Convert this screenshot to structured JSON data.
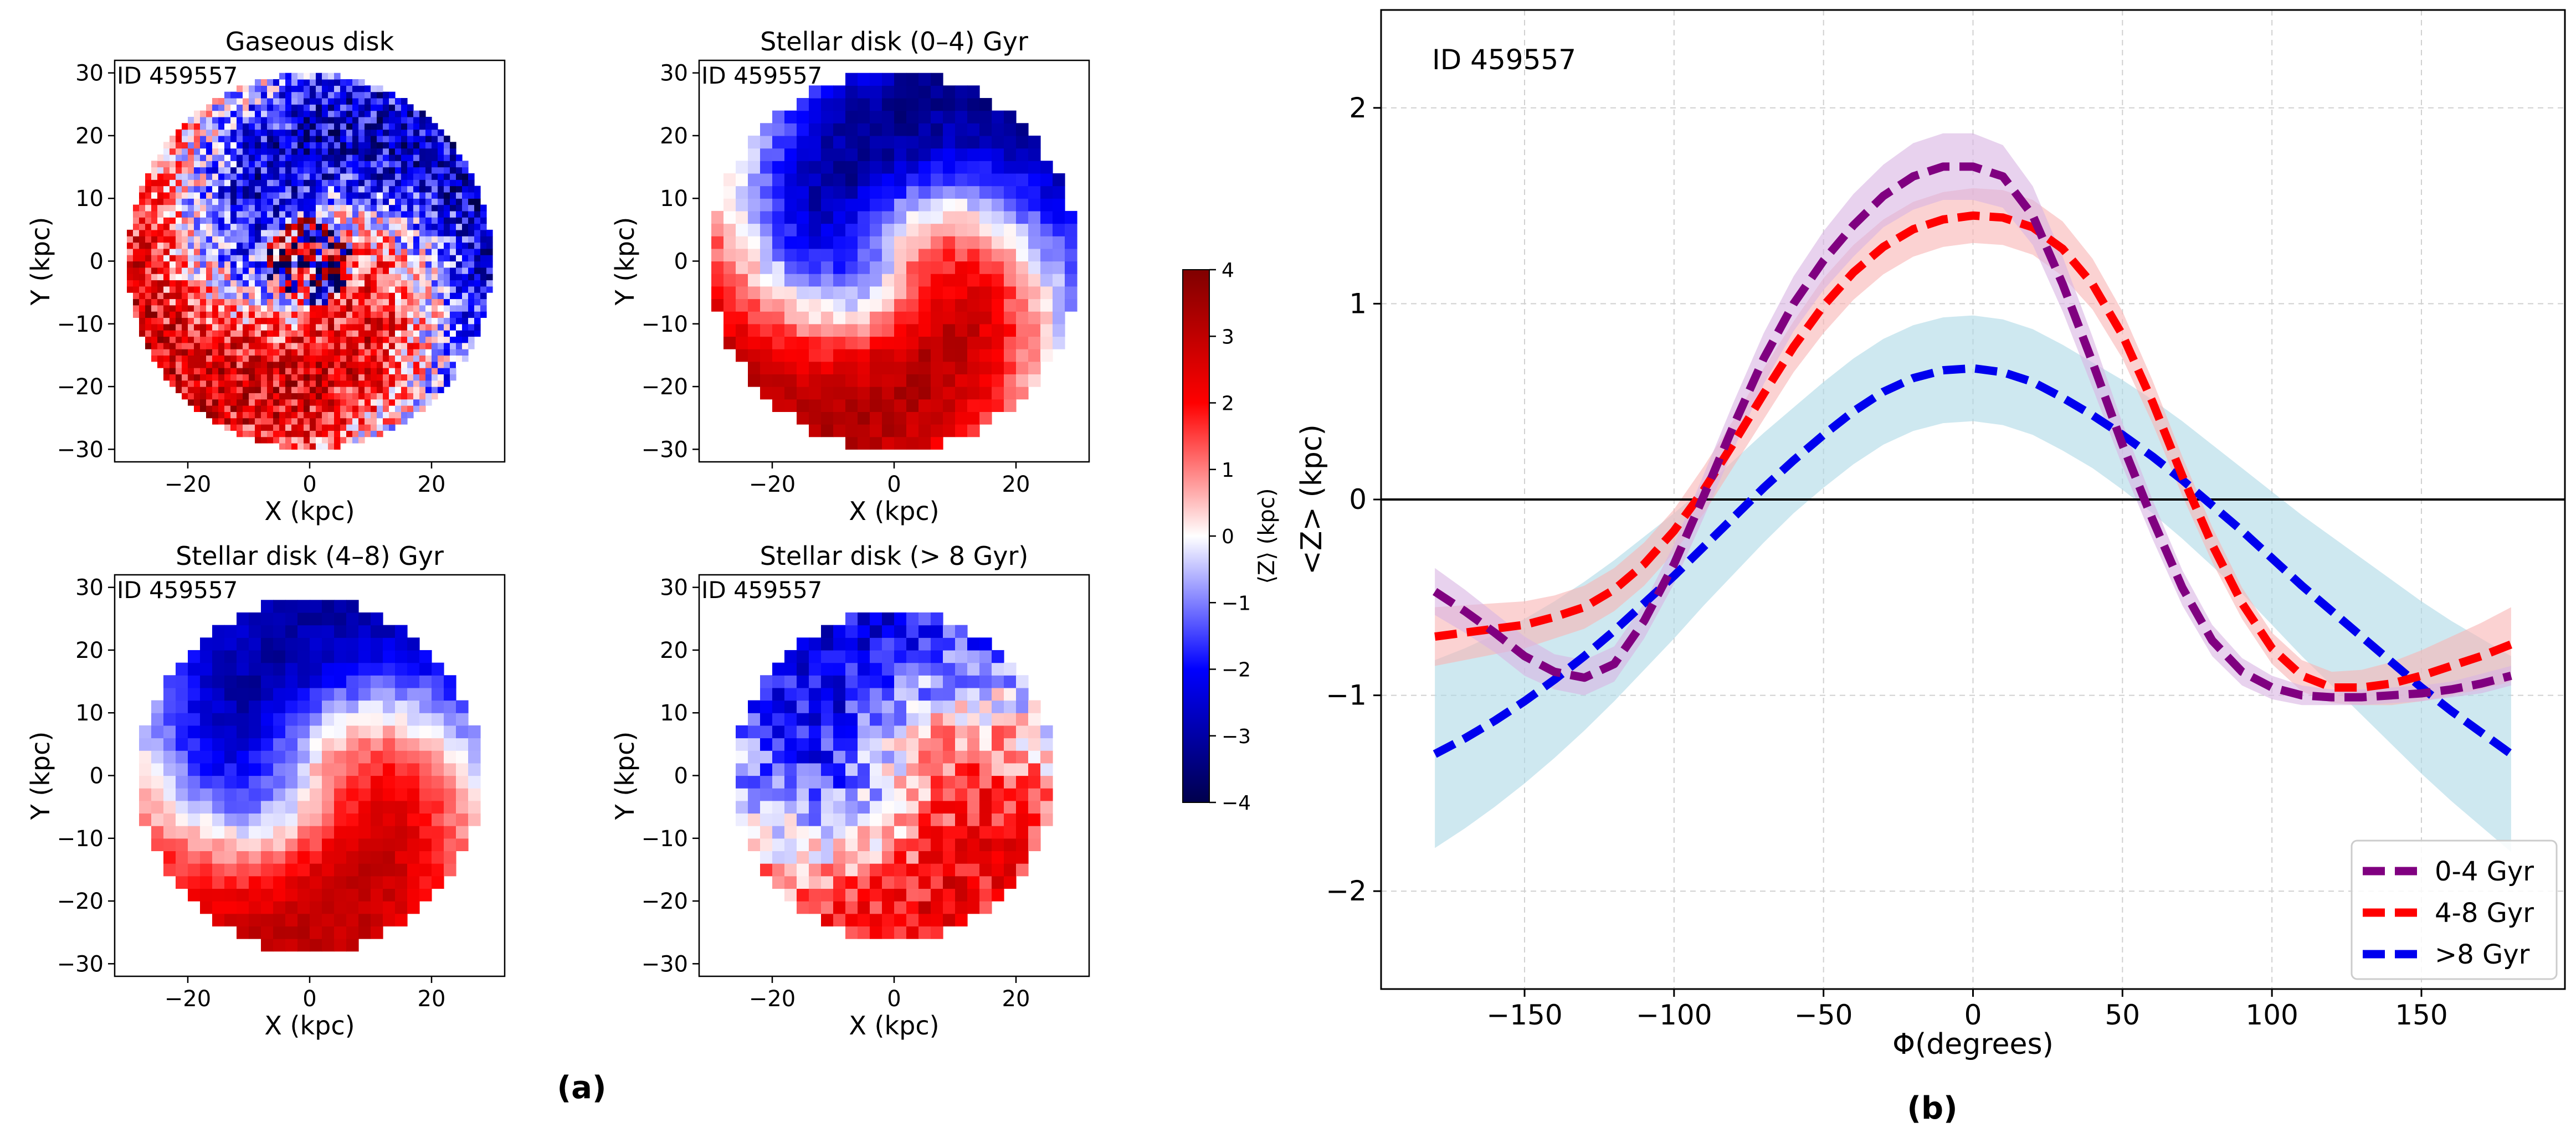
{
  "figure": {
    "panel_a_label": "(a)",
    "panel_b_label": "(b)"
  },
  "colorbar": {
    "label": "⟨Z⟩ (kpc)",
    "range": [
      -4,
      4
    ],
    "ticks": [
      -4,
      -3,
      -2,
      -1,
      0,
      1,
      2,
      3,
      4
    ],
    "colormap": "seismic",
    "colors": [
      "#00004c",
      "#0000ff",
      "#ffffff",
      "#ff0000",
      "#800000"
    ]
  },
  "chart_data": [
    {
      "type": "heatmap",
      "title": "Gaseous disk",
      "annotation": "ID 459557",
      "xlabel": "X (kpc)",
      "ylabel": "Y (kpc)",
      "xlim": [
        -32,
        32
      ],
      "ylim": [
        -32,
        32
      ],
      "xticks": [
        -20,
        0,
        20
      ],
      "yticks": [
        -30,
        -20,
        -10,
        0,
        10,
        20,
        30
      ],
      "disk_radius_kpc": 30,
      "pixel_kpc": 1,
      "colormap": "seismic",
      "color_range": [
        -4,
        4
      ],
      "pattern": {
        "kind": "warp",
        "amplitude": 2.6,
        "phase_deg": 0,
        "spiral": 0.09,
        "noise": 1.6,
        "center_noise": true
      }
    },
    {
      "type": "heatmap",
      "title": "Stellar disk (0–4) Gyr",
      "annotation": "ID 459557",
      "xlabel": "X (kpc)",
      "ylabel": "Y (kpc)",
      "xlim": [
        -32,
        32
      ],
      "ylim": [
        -32,
        32
      ],
      "xticks": [
        -20,
        0,
        20
      ],
      "yticks": [
        -30,
        -20,
        -10,
        0,
        10,
        20,
        30
      ],
      "disk_radius_kpc": 30,
      "pixel_kpc": 2,
      "colormap": "seismic",
      "color_range": [
        -4,
        4
      ],
      "pattern": {
        "kind": "warp",
        "amplitude": 3.2,
        "phase_deg": 0,
        "spiral": 0.07,
        "noise": 0.4
      }
    },
    {
      "type": "heatmap",
      "title": "Stellar disk (4–8) Gyr",
      "annotation": "ID 459557",
      "xlabel": "X (kpc)",
      "ylabel": "Y (kpc)",
      "xlim": [
        -32,
        32
      ],
      "ylim": [
        -32,
        32
      ],
      "xticks": [
        -20,
        0,
        20
      ],
      "yticks": [
        -30,
        -20,
        -10,
        0,
        10,
        20,
        30
      ],
      "disk_radius_kpc": 28,
      "pixel_kpc": 2,
      "colormap": "seismic",
      "color_range": [
        -4,
        4
      ],
      "pattern": {
        "kind": "warp",
        "amplitude": 3.0,
        "phase_deg": 0,
        "spiral": 0.06,
        "noise": 0.35
      }
    },
    {
      "type": "heatmap",
      "title": "Stellar disk (> 8 Gyr)",
      "annotation": "ID 459557",
      "xlabel": "X (kpc)",
      "ylabel": "Y (kpc)",
      "xlim": [
        -32,
        32
      ],
      "ylim": [
        -32,
        32
      ],
      "xticks": [
        -20,
        0,
        20
      ],
      "yticks": [
        -30,
        -20,
        -10,
        0,
        10,
        20,
        30
      ],
      "disk_radius_kpc": 26,
      "pixel_kpc": 2,
      "colormap": "seismic",
      "color_range": [
        -4,
        4
      ],
      "pattern": {
        "kind": "warp",
        "amplitude": 2.2,
        "phase_deg": 0,
        "spiral": 0.05,
        "noise": 0.9
      }
    },
    {
      "type": "line",
      "title": "",
      "annotation": "ID 459557",
      "xlabel": "Φ(degrees)",
      "ylabel": "<Z> (kpc)",
      "xlim": [
        -198,
        198
      ],
      "ylim": [
        -2.5,
        2.5
      ],
      "xticks": [
        -150,
        -100,
        -50,
        0,
        50,
        100,
        150
      ],
      "yticks": [
        -2,
        -1,
        0,
        1,
        2
      ],
      "grid": true,
      "reference_line_y": 0,
      "legend_position": "bottom-right",
      "x": [
        -180,
        -170,
        -160,
        -150,
        -140,
        -130,
        -120,
        -110,
        -100,
        -90,
        -80,
        -70,
        -60,
        -50,
        -40,
        -30,
        -20,
        -10,
        0,
        10,
        20,
        30,
        40,
        50,
        60,
        70,
        80,
        90,
        100,
        110,
        120,
        130,
        140,
        150,
        160,
        170,
        180
      ],
      "series": [
        {
          "name": "0-4 Gyr",
          "color": "#800080",
          "band_color": "#d8b4e2",
          "values": [
            -0.47,
            -0.57,
            -0.68,
            -0.8,
            -0.88,
            -0.91,
            -0.84,
            -0.62,
            -0.33,
            0.02,
            0.38,
            0.72,
            1.0,
            1.22,
            1.4,
            1.55,
            1.65,
            1.7,
            1.7,
            1.65,
            1.45,
            1.1,
            0.7,
            0.28,
            -0.1,
            -0.45,
            -0.72,
            -0.88,
            -0.96,
            -1.0,
            -1.01,
            -1.01,
            -1.0,
            -0.99,
            -0.97,
            -0.94,
            -0.9
          ],
          "band": [
            0.12,
            0.11,
            0.1,
            0.1,
            0.09,
            0.09,
            0.09,
            0.09,
            0.1,
            0.11,
            0.12,
            0.13,
            0.14,
            0.15,
            0.16,
            0.16,
            0.17,
            0.17,
            0.17,
            0.16,
            0.15,
            0.14,
            0.13,
            0.11,
            0.1,
            0.09,
            0.08,
            0.07,
            0.06,
            0.05,
            0.04,
            0.04,
            0.04,
            0.04,
            0.04,
            0.05,
            0.05
          ]
        },
        {
          "name": "4-8 Gyr",
          "color": "#ff0000",
          "band_color": "#f8b4b4",
          "values": [
            -0.7,
            -0.68,
            -0.66,
            -0.64,
            -0.6,
            -0.55,
            -0.46,
            -0.33,
            -0.16,
            0.05,
            0.29,
            0.54,
            0.78,
            0.99,
            1.16,
            1.29,
            1.38,
            1.43,
            1.45,
            1.44,
            1.39,
            1.28,
            1.1,
            0.84,
            0.5,
            0.12,
            -0.23,
            -0.53,
            -0.76,
            -0.9,
            -0.96,
            -0.96,
            -0.94,
            -0.9,
            -0.85,
            -0.8,
            -0.74
          ],
          "band": [
            0.15,
            0.14,
            0.13,
            0.12,
            0.11,
            0.11,
            0.11,
            0.11,
            0.11,
            0.12,
            0.12,
            0.13,
            0.13,
            0.14,
            0.14,
            0.14,
            0.14,
            0.14,
            0.14,
            0.14,
            0.14,
            0.14,
            0.13,
            0.12,
            0.11,
            0.1,
            0.09,
            0.08,
            0.08,
            0.08,
            0.08,
            0.09,
            0.11,
            0.13,
            0.15,
            0.17,
            0.19
          ]
        },
        {
          "name": ">8 Gyr",
          "color": "#0000ee",
          "band_color": "#add8e6",
          "values": [
            -1.3,
            -1.22,
            -1.13,
            -1.03,
            -0.92,
            -0.8,
            -0.67,
            -0.53,
            -0.39,
            -0.24,
            -0.09,
            0.06,
            0.2,
            0.33,
            0.45,
            0.55,
            0.62,
            0.66,
            0.67,
            0.65,
            0.6,
            0.52,
            0.43,
            0.33,
            0.22,
            0.1,
            -0.03,
            -0.16,
            -0.3,
            -0.44,
            -0.57,
            -0.7,
            -0.83,
            -0.96,
            -1.08,
            -1.19,
            -1.3
          ],
          "band": [
            0.48,
            0.46,
            0.44,
            0.42,
            0.4,
            0.38,
            0.36,
            0.34,
            0.32,
            0.3,
            0.29,
            0.28,
            0.27,
            0.27,
            0.27,
            0.27,
            0.27,
            0.27,
            0.27,
            0.27,
            0.27,
            0.27,
            0.27,
            0.28,
            0.29,
            0.3,
            0.31,
            0.32,
            0.34,
            0.36,
            0.38,
            0.4,
            0.42,
            0.44,
            0.46,
            0.48,
            0.5
          ]
        }
      ]
    }
  ]
}
